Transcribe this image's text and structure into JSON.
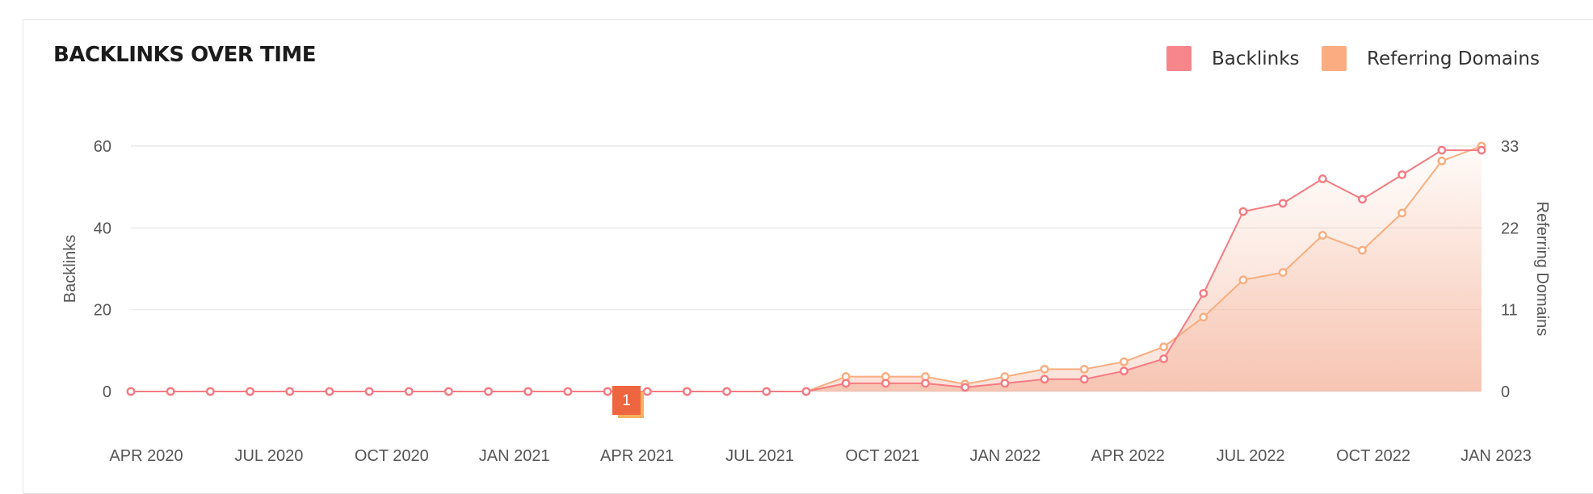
{
  "header": {
    "title": "BACKLINKS OVER TIME"
  },
  "legend": {
    "backlinks_label": "Backlinks",
    "domains_label": "Referring Domains"
  },
  "colors": {
    "backlinks": "#f47b83",
    "domains": "#f8ad7f",
    "marker": "#ed6640",
    "marker_shadow": "#f8b25b"
  },
  "chart_data": {
    "type": "line",
    "x_tick_labels": [
      "APR 2020",
      "JUL 2020",
      "OCT 2020",
      "JAN 2021",
      "APR 2021",
      "JUL 2021",
      "OCT 2021",
      "JAN 2022",
      "APR 2022",
      "JUL 2022",
      "OCT 2022",
      "JAN 2023"
    ],
    "y_left": {
      "label": "Backlinks",
      "ticks": [
        0,
        20,
        40,
        60
      ],
      "range": [
        0,
        60
      ]
    },
    "y_right": {
      "label": "Referring Domains",
      "ticks": [
        0,
        11,
        22,
        33
      ],
      "range": [
        0,
        33
      ]
    },
    "grid": true,
    "legend_position": "top-right",
    "annotation": {
      "text": "1",
      "period": "APR 2021"
    },
    "series": [
      {
        "name": "Backlinks",
        "axis": "left",
        "values": [
          0,
          0,
          0,
          0,
          0,
          0,
          0,
          0,
          0,
          0,
          0,
          0,
          0,
          0,
          0,
          0,
          0,
          0,
          2,
          2,
          2,
          1,
          2,
          3,
          3,
          5,
          8,
          24,
          44,
          46,
          52,
          47,
          53,
          59,
          59
        ]
      },
      {
        "name": "Referring Domains",
        "axis": "right",
        "values": [
          0,
          0,
          0,
          0,
          0,
          0,
          0,
          0,
          0,
          0,
          0,
          0,
          0,
          0,
          0,
          0,
          0,
          0,
          2,
          2,
          2,
          1,
          2,
          3,
          3,
          4,
          6,
          10,
          15,
          16,
          21,
          19,
          24,
          31,
          33
        ]
      }
    ]
  }
}
